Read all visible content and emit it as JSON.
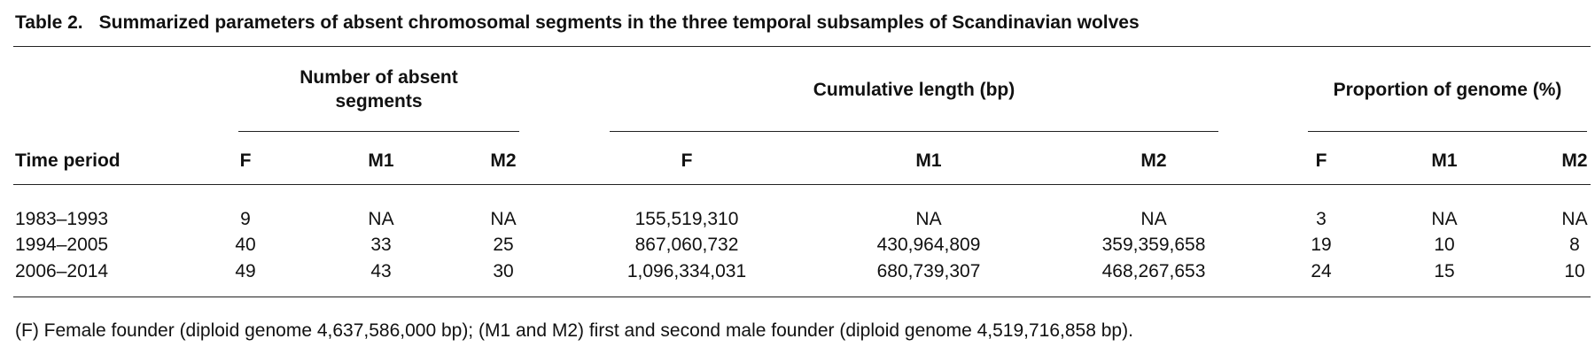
{
  "table": {
    "label": "Table 2.",
    "title": "Summarized parameters of absent chromosomal segments in the three temporal subsamples of Scandinavian wolves",
    "groups": [
      "Number of absent segments",
      "Cumulative length (bp)",
      "Proportion of genome (%)"
    ],
    "header": [
      "Time period",
      "F",
      "M1",
      "M2",
      "F",
      "M1",
      "M2",
      "F",
      "M1",
      "M2"
    ],
    "rows": [
      [
        "1983–1993",
        "9",
        "NA",
        "NA",
        "155,519,310",
        "NA",
        "NA",
        "3",
        "NA",
        "NA"
      ],
      [
        "1994–2005",
        "40",
        "33",
        "25",
        "867,060,732",
        "430,964,809",
        "359,359,658",
        "19",
        "10",
        "8"
      ],
      [
        "2006–2014",
        "49",
        "43",
        "30",
        "1,096,334,031",
        "680,739,307",
        "468,267,653",
        "24",
        "15",
        "10"
      ]
    ]
  },
  "footnote": "(F) Female founder (diploid genome 4,637,586,000 bp); (M1 and M2) first and second male founder (diploid genome 4,519,716,858 bp)."
}
